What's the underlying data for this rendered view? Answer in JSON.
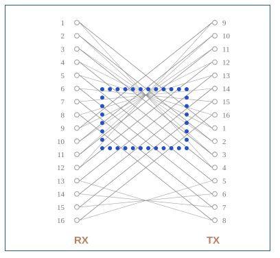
{
  "left_pins": [
    "1",
    "2",
    "3",
    "4",
    "5",
    "6",
    "7",
    "8",
    "9",
    "10",
    "11",
    "12",
    "13",
    "14",
    "15",
    "16"
  ],
  "right_pins": [
    "9",
    "10",
    "11",
    "12",
    "13",
    "14",
    "15",
    "16",
    "1",
    "2",
    "3",
    "4",
    "5",
    "6",
    "7",
    "8"
  ],
  "left_label": "RX",
  "right_label": "TX",
  "colors": {
    "border": "#1f5f8e",
    "wire": "#8a8a8a",
    "pin": "#9a9a9a",
    "label_text": "#777777",
    "side_label": "#b87f63",
    "dot": "#2350c8"
  }
}
